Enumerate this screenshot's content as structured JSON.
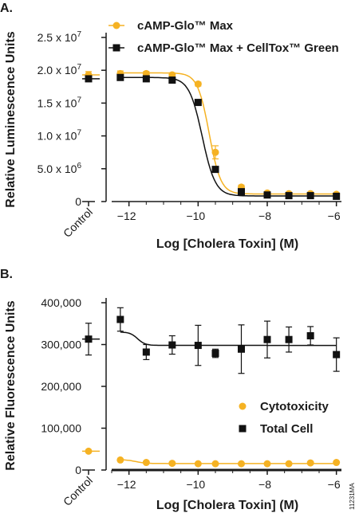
{
  "colors": {
    "orange": "#f5b223",
    "black": "#111111",
    "axis": "#1a1a1a"
  },
  "figure_code": "11231MA",
  "chart_data": [
    {
      "panel_label": "A.",
      "type": "scatter",
      "xlabel": "Log [Cholera Toxin] (M)",
      "ylabel": "Relative Luminescence Units",
      "control_label": "Control",
      "xlim": [
        -12.5,
        -5.9
      ],
      "ylim": [
        0,
        25000000
      ],
      "xticks": [
        -12,
        -10,
        -8,
        -6
      ],
      "yticks": [
        {
          "value": 0,
          "mant": "0",
          "exp": ""
        },
        {
          "value": 5000000,
          "mant": "5.0 x 10",
          "exp": "6"
        },
        {
          "value": 10000000,
          "mant": "1.0 x 10",
          "exp": "7"
        },
        {
          "value": 15000000,
          "mant": "1.5 x 10",
          "exp": "7"
        },
        {
          "value": 20000000,
          "mant": "2.0 x 10",
          "exp": "7"
        },
        {
          "value": 25000000,
          "mant": "2.5 x 10",
          "exp": "7"
        }
      ],
      "legend_position": "top",
      "series": [
        {
          "name": "cAMP-Glo™ Max",
          "color": "#f5b223",
          "marker": "circle",
          "control": {
            "y": 19300000,
            "err": 500000
          },
          "x": [
            -12.25,
            -11.5,
            -10.75,
            -10.0,
            -9.5,
            -8.75,
            -8.0,
            -7.375,
            -6.75,
            -6.0
          ],
          "y": [
            19500000,
            19500000,
            19300000,
            17900000,
            7500000,
            2200000,
            1300000,
            1200000,
            1200000,
            1100000
          ],
          "err": [
            400000,
            300000,
            300000,
            300000,
            1000000,
            300000,
            200000,
            200000,
            200000,
            200000
          ],
          "fit": {
            "top": 19600000,
            "bottom": 1150000,
            "logEC50": -9.68,
            "hill": 2.6
          }
        },
        {
          "name": "cAMP-Glo™ Max + CellTox™ Green",
          "color": "#111111",
          "marker": "square",
          "control": {
            "y": 18700000,
            "err": 400000
          },
          "x": [
            -12.25,
            -11.5,
            -10.75,
            -10.0,
            -9.5,
            -8.75,
            -8.0,
            -7.375,
            -6.75,
            -6.0
          ],
          "y": [
            18900000,
            18700000,
            18500000,
            15100000,
            4900000,
            1500000,
            1000000,
            900000,
            900000,
            800000
          ],
          "err": [
            300000,
            300000,
            300000,
            300000,
            300000,
            200000,
            150000,
            150000,
            150000,
            150000
          ],
          "fit": {
            "top": 18900000,
            "bottom": 850000,
            "logEC50": -9.88,
            "hill": 2.3
          }
        }
      ]
    },
    {
      "panel_label": "B.",
      "type": "scatter",
      "xlabel": "Log [Cholera Toxin] (M)",
      "ylabel": "Relative Fluorescence Units",
      "control_label": "Control",
      "xlim": [
        -12.5,
        -5.9
      ],
      "ylim": [
        0,
        400000
      ],
      "xticks": [
        -12,
        -10,
        -8,
        -6
      ],
      "yticks": [
        {
          "value": 0,
          "label": "0"
        },
        {
          "value": 100000,
          "label": "100,000"
        },
        {
          "value": 200000,
          "label": "200,000"
        },
        {
          "value": 300000,
          "label": "300,000"
        },
        {
          "value": 400000,
          "label": "400,000"
        }
      ],
      "legend_position": "bottom-right",
      "series": [
        {
          "name": "Cytotoxicity",
          "color": "#f5b223",
          "marker": "circle",
          "control": {
            "y": 45000,
            "err": 0
          },
          "x": [
            -12.25,
            -11.5,
            -10.75,
            -10.0,
            -9.5,
            -8.75,
            -8.0,
            -7.375,
            -6.75,
            -6.0
          ],
          "y": [
            24000,
            18000,
            16000,
            15000,
            15000,
            15000,
            15000,
            15000,
            17000,
            18000
          ],
          "err": [
            0,
            0,
            0,
            0,
            0,
            0,
            0,
            0,
            0,
            0
          ],
          "fit": {
            "top": 25000,
            "bottom": 15500,
            "logEC50": -11.8,
            "hill": 3
          }
        },
        {
          "name": "Total Cell",
          "color": "#111111",
          "marker": "square",
          "control": {
            "y": 313000,
            "err": 38000
          },
          "x": [
            -12.25,
            -11.5,
            -10.75,
            -10.0,
            -9.5,
            -8.75,
            -8.0,
            -7.375,
            -6.75,
            -6.0
          ],
          "y": [
            360000,
            282000,
            299000,
            298000,
            279000,
            289000,
            312000,
            312000,
            321000,
            276000
          ],
          "err": [
            28000,
            18000,
            22000,
            48000,
            10000,
            58000,
            44000,
            30000,
            22000,
            40000
          ],
          "fit": {
            "top": 330000,
            "bottom": 298000,
            "logEC50": -11.75,
            "hill": 4
          }
        }
      ]
    }
  ]
}
